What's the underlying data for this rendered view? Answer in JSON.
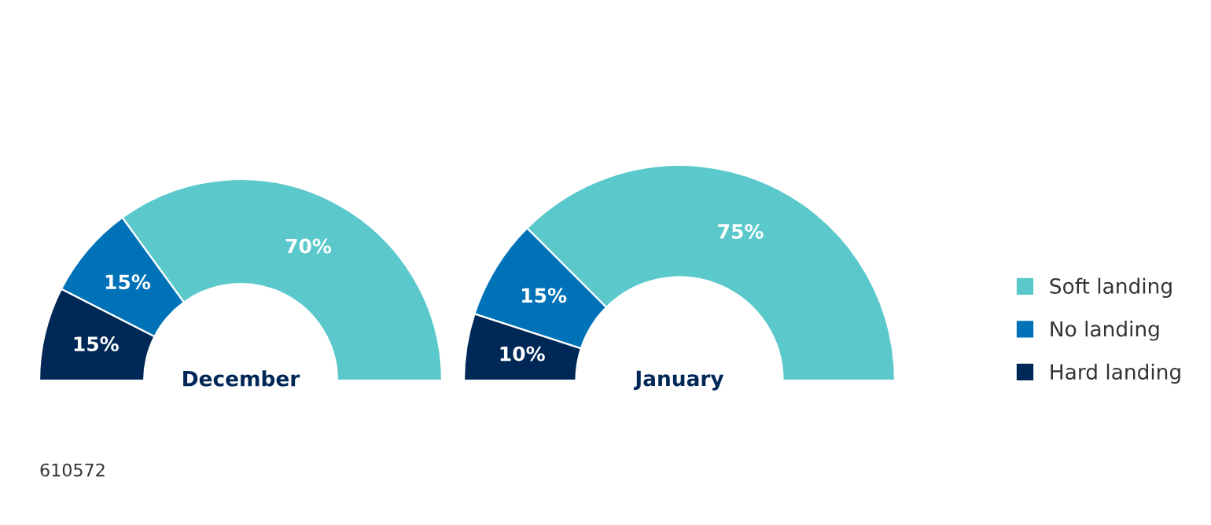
{
  "chart_data": [
    {
      "type": "donut",
      "title": "December",
      "categories": [
        "Soft landing",
        "No landing",
        "Hard landing"
      ],
      "values": [
        70,
        15,
        15
      ],
      "value_labels": [
        "70%",
        "15%",
        "15%"
      ],
      "colors": [
        "#5bc8cc",
        "#0072b8",
        "#002857"
      ],
      "legend": "right",
      "annotations": [
        "610572"
      ]
    },
    {
      "type": "donut",
      "title": "January",
      "categories": [
        null,
        null,
        null
      ],
      "values": [
        75,
        15,
        10
      ],
      "value_labels": [
        "75%",
        "15%",
        "10%"
      ],
      "colors": [
        "#5bc8cc",
        "#0072b8",
        "#002857"
      ]
    }
  ]
}
